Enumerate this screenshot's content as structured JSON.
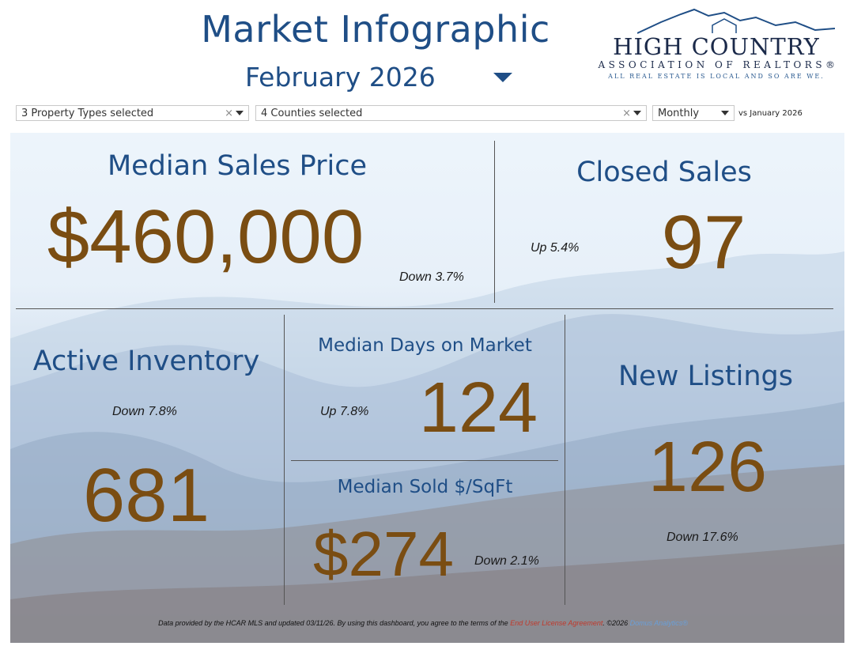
{
  "header": {
    "title": "Market Infographic",
    "month": "February 2026",
    "logo": {
      "main": "HIGH COUNTRY",
      "sub": "ASSOCIATION OF REALTORS®",
      "tag": "ALL REAL ESTATE IS LOCAL AND SO ARE WE."
    }
  },
  "filters": {
    "property_types": "3 Property Types selected",
    "counties": "4 Counties selected",
    "period": "Monthly",
    "comparison": "vs January 2026"
  },
  "metrics": {
    "median_sales_price": {
      "label": "Median Sales Price",
      "value": "$460,000",
      "change": "Down 3.7%"
    },
    "closed_sales": {
      "label": "Closed Sales",
      "value": "97",
      "change": "Up 5.4%"
    },
    "active_inventory": {
      "label": "Active Inventory",
      "value": "681",
      "change": "Down 7.8%"
    },
    "median_days_on_market": {
      "label": "Median Days on Market",
      "value": "124",
      "change": "Up 7.8%"
    },
    "median_sold_sqft": {
      "label": "Median Sold $/SqFt",
      "value": "$274",
      "change": "Down 2.1%"
    },
    "new_listings": {
      "label": "New Listings",
      "value": "126",
      "change": "Down 17.6%"
    }
  },
  "footer": {
    "text_before": "Data provided by the HCAR MLS and updated 03/11/26.  By using this dashboard, you agree to the terms of the ",
    "link": "End User License Agreement",
    "text_after": ".  ©2026 ",
    "brand": "Domus Analytics®"
  },
  "colors": {
    "heading": "#1f4e86",
    "value": "#7a4d12"
  }
}
